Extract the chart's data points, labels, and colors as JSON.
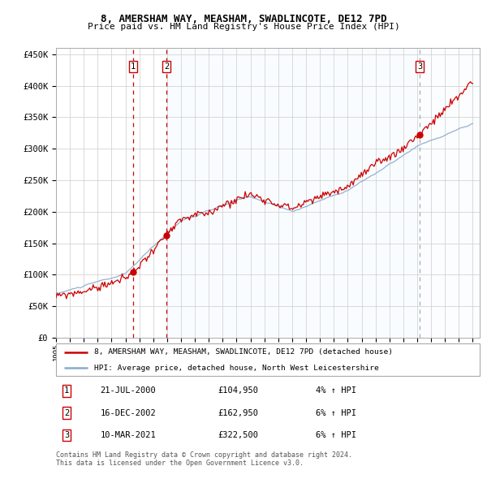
{
  "title1": "8, AMERSHAM WAY, MEASHAM, SWADLINCOTE, DE12 7PD",
  "title2": "Price paid vs. HM Land Registry's House Price Index (HPI)",
  "ylabel_ticks": [
    "£0",
    "£50K",
    "£100K",
    "£150K",
    "£200K",
    "£250K",
    "£300K",
    "£350K",
    "£400K",
    "£450K"
  ],
  "ytick_values": [
    0,
    50000,
    100000,
    150000,
    200000,
    250000,
    300000,
    350000,
    400000,
    450000
  ],
  "x_start_year": 1995,
  "x_end_year": 2025,
  "sale1_date": 2000.55,
  "sale1_price": 104950,
  "sale1_label": "21-JUL-2000",
  "sale1_amount": "£104,950",
  "sale1_pct": "4% ↑ HPI",
  "sale2_date": 2002.96,
  "sale2_price": 162950,
  "sale2_label": "16-DEC-2002",
  "sale2_amount": "£162,950",
  "sale2_pct": "6% ↑ HPI",
  "sale3_date": 2021.19,
  "sale3_price": 322500,
  "sale3_label": "10-MAR-2021",
  "sale3_amount": "£322,500",
  "sale3_pct": "6% ↑ HPI",
  "legend_line1": "8, AMERSHAM WAY, MEASHAM, SWADLINCOTE, DE12 7PD (detached house)",
  "legend_line2": "HPI: Average price, detached house, North West Leicestershire",
  "footer1": "Contains HM Land Registry data © Crown copyright and database right 2024.",
  "footer2": "This data is licensed under the Open Government Licence v3.0.",
  "red_color": "#cc0000",
  "blue_color": "#88aacc",
  "blue_fill": "#ddeeff",
  "bg_color": "#ffffff",
  "grid_color": "#cccccc"
}
